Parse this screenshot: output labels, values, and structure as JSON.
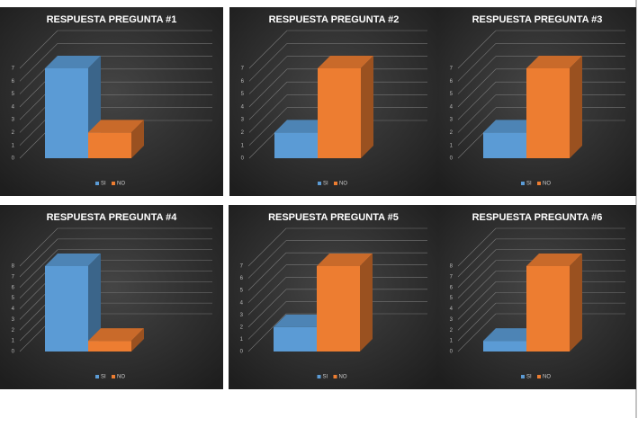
{
  "chart_data": [
    {
      "type": "bar",
      "title": "RESPUESTA PREGUNTA #1",
      "series": [
        {
          "name": "SI",
          "color": "#5b9bd5",
          "values": [
            7
          ]
        },
        {
          "name": "NO",
          "color": "#ed7d31",
          "values": [
            2
          ]
        }
      ],
      "ylim": [
        0,
        7
      ],
      "yticks": [
        0,
        1,
        2,
        3,
        4,
        5,
        6,
        7
      ],
      "grid": true
    },
    {
      "type": "bar",
      "title": "RESPUESTA PREGUNTA #2",
      "series": [
        {
          "name": "SI",
          "color": "#5b9bd5",
          "values": [
            2
          ]
        },
        {
          "name": "NO",
          "color": "#ed7d31",
          "values": [
            7
          ]
        }
      ],
      "ylim": [
        0,
        7
      ],
      "yticks": [
        0,
        1,
        2,
        3,
        4,
        5,
        6,
        7
      ],
      "grid": true
    },
    {
      "type": "bar",
      "title": "RESPUESTA PREGUNTA #3",
      "series": [
        {
          "name": "SI",
          "color": "#5b9bd5",
          "values": [
            2
          ]
        },
        {
          "name": "NO",
          "color": "#ed7d31",
          "values": [
            7
          ]
        }
      ],
      "ylim": [
        0,
        7
      ],
      "yticks": [
        0,
        1,
        2,
        3,
        4,
        5,
        6,
        7
      ],
      "grid": true
    },
    {
      "type": "bar",
      "title": "RESPUESTA PREGUNTA #4",
      "series": [
        {
          "name": "SI",
          "color": "#5b9bd5",
          "values": [
            8
          ]
        },
        {
          "name": "NO",
          "color": "#ed7d31",
          "values": [
            1
          ]
        }
      ],
      "ylim": [
        0,
        8
      ],
      "yticks": [
        0,
        1,
        2,
        3,
        4,
        5,
        6,
        7,
        8
      ],
      "grid": true
    },
    {
      "type": "bar",
      "title": "RESPUESTA PREGUNTA #5",
      "series": [
        {
          "name": "SI",
          "color": "#5b9bd5",
          "values": [
            2
          ]
        },
        {
          "name": "NO",
          "color": "#ed7d31",
          "values": [
            7
          ]
        }
      ],
      "ylim": [
        0,
        7
      ],
      "yticks": [
        0,
        1,
        2,
        3,
        4,
        5,
        6,
        7
      ],
      "grid": true
    },
    {
      "type": "bar",
      "title": "RESPUESTA PREGUNTA #6",
      "series": [
        {
          "name": "SI",
          "color": "#5b9bd5",
          "values": [
            1
          ]
        },
        {
          "name": "NO",
          "color": "#ed7d31",
          "values": [
            8
          ]
        }
      ],
      "ylim": [
        0,
        8
      ],
      "yticks": [
        0,
        1,
        2,
        3,
        4,
        5,
        6,
        7,
        8
      ],
      "grid": true
    }
  ]
}
